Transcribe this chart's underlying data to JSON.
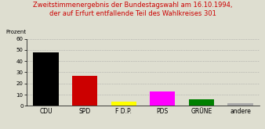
{
  "title_line1": "Zweitstimmenergebnis der Bundestagswahl am 16.10.1994,",
  "title_line2": "der auf Erfurt entfallende Teil des Wahlkreises 301",
  "categories": [
    "CDU",
    "SPD",
    "F D.P.",
    "PDS",
    "GRÜNE",
    "andere"
  ],
  "values": [
    48,
    27,
    4,
    13,
    6,
    2
  ],
  "colors": [
    "#000000",
    "#cc0000",
    "#ffff00",
    "#ff00ff",
    "#008000",
    "#aaaaaa"
  ],
  "ylabel": "Prozent",
  "ylim": [
    0,
    60
  ],
  "yticks": [
    0,
    10,
    20,
    30,
    40,
    50,
    60
  ],
  "title_color": "#cc0000",
  "title_fontsize": 6.0,
  "ylabel_fontsize": 5.0,
  "xlabel_fontsize": 5.5,
  "tick_fontsize": 5.0,
  "background_color": "#deded0",
  "grid_color": "#999999"
}
